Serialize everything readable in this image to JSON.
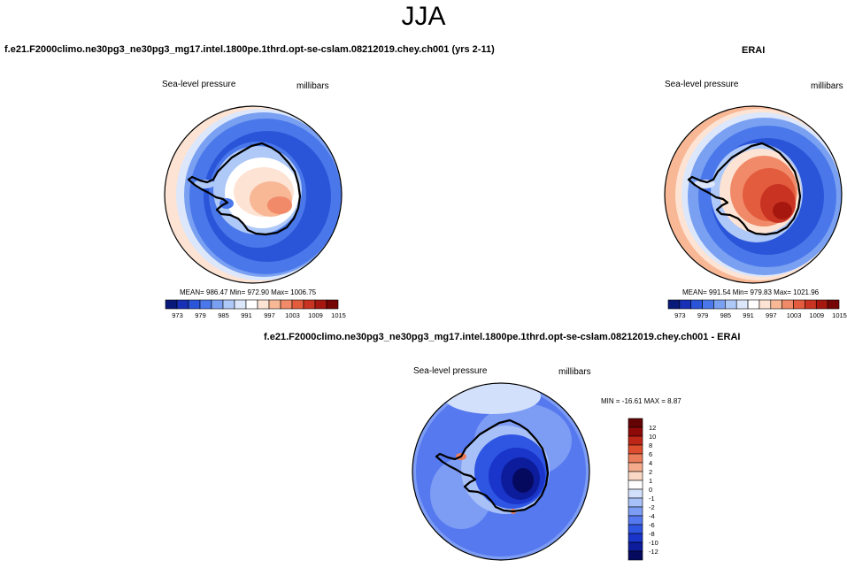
{
  "figure": {
    "title": "JJA",
    "panels": [
      {
        "title": "f.e21.F2000climo.ne30pg3_ne30pg3_mg17.intel.1800pe.1thrd.opt-se-cslam.08212019.chey.ch001 (yrs 2-11)",
        "variable": "Sea-level pressure",
        "units": "millibars",
        "stats": "MEAN= 986.47  Min= 972.90  Max= 1006.75",
        "colorbar_ticks": [
          "973",
          "979",
          "985",
          "991",
          "997",
          "1003",
          "1009",
          "1015"
        ]
      },
      {
        "title": "ERAI",
        "variable": "Sea-level pressure",
        "units": "millibars",
        "stats": "MEAN= 991.54  Min= 979.83  Max= 1021.96",
        "colorbar_ticks": [
          "973",
          "979",
          "985",
          "991",
          "997",
          "1003",
          "1009",
          "1015"
        ]
      },
      {
        "title": "f.e21.F2000climo.ne30pg3_ne30pg3_mg17.intel.1800pe.1thrd.opt-se-cslam.08212019.chey.ch001 - ERAI",
        "variable": "Sea-level pressure",
        "units": "millibars",
        "stats": "MIN = -16.61 MAX =   8.87",
        "colorbar_ticks": [
          "12",
          "10",
          "8",
          "6",
          "4",
          "2",
          "1",
          "0",
          "-1",
          "-2",
          "-4",
          "-6",
          "-8",
          "-10",
          "-12"
        ]
      }
    ]
  },
  "colors": {
    "abs_scale": [
      "#08197a",
      "#1730b5",
      "#2a55d8",
      "#4a78ea",
      "#7aa0f2",
      "#aec8f8",
      "#dce7fb",
      "#ffffff",
      "#fde3d3",
      "#f8b896",
      "#f08a68",
      "#e35c3e",
      "#c93422",
      "#a5170f",
      "#760606"
    ],
    "diff_scale": [
      "#060a5e",
      "#0c1c9a",
      "#1a35c9",
      "#2f55e3",
      "#5679ef",
      "#7d9cf4",
      "#a8c0f8",
      "#d2e0fb",
      "#ffffff",
      "#fbd8c6",
      "#f5ac8d",
      "#ec7d5a",
      "#dd4e2f",
      "#be2717",
      "#8e0a08",
      "#640303"
    ],
    "coast": "#000000"
  }
}
